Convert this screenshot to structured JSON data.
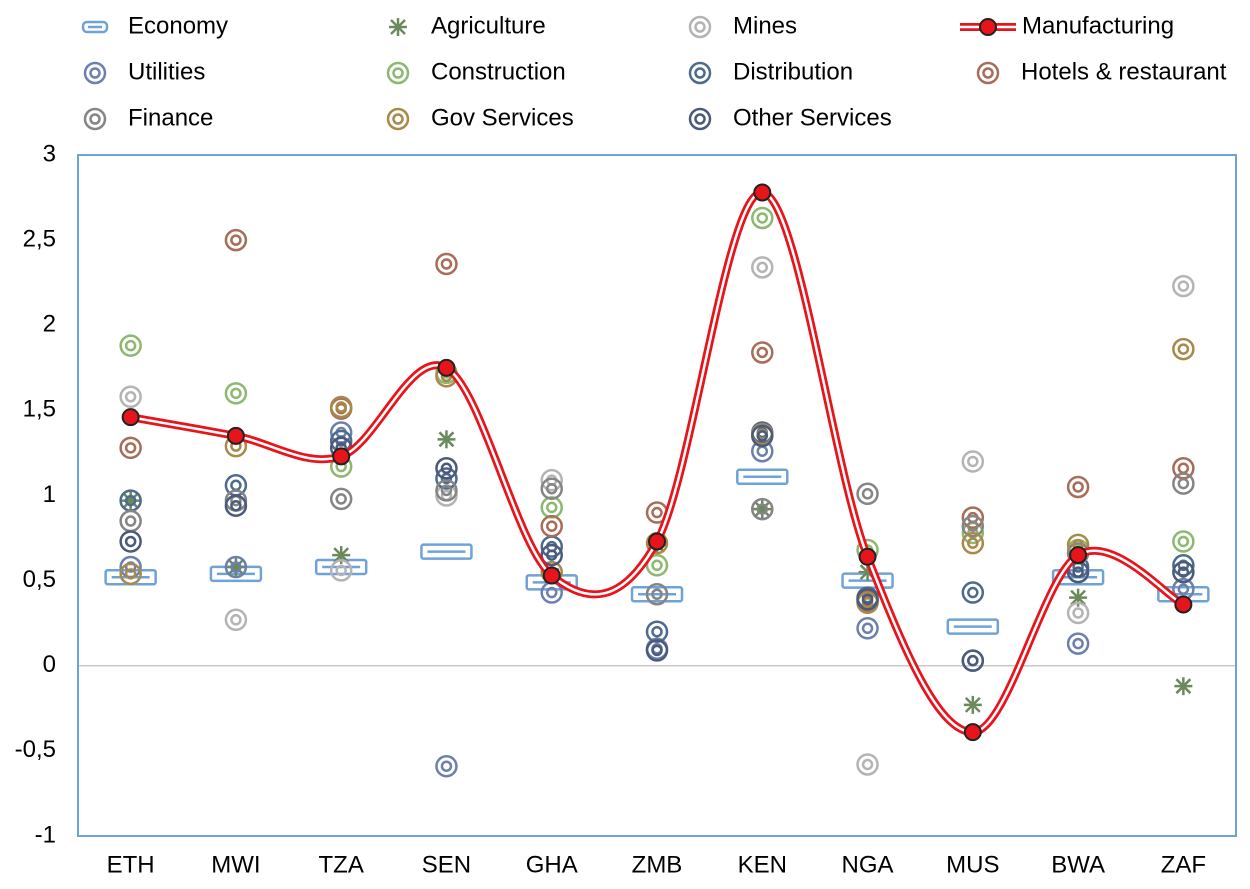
{
  "chart_data": {
    "type": "dot",
    "categories": [
      "ETH",
      "MWI",
      "TZA",
      "SEN",
      "GHA",
      "ZMB",
      "KEN",
      "NGA",
      "MUS",
      "BWA",
      "ZAF"
    ],
    "series": [
      {
        "name": "Economy",
        "color": "#6fa3d8",
        "marker": "bar",
        "values": [
          0.52,
          0.54,
          0.58,
          0.67,
          0.49,
          0.42,
          1.11,
          0.5,
          0.23,
          0.52,
          0.42
        ]
      },
      {
        "name": "Agriculture",
        "color": "#6b8a5c",
        "marker": "asterisk",
        "values": [
          0.97,
          0.58,
          0.65,
          1.33,
          0.53,
          0.71,
          0.92,
          0.55,
          -0.23,
          0.4,
          -0.12
        ]
      },
      {
        "name": "Mines",
        "color": "#b4b4b4",
        "marker": "ring",
        "values": [
          1.58,
          0.27,
          0.56,
          1.0,
          1.09,
          0.42,
          2.34,
          -0.58,
          1.2,
          0.31,
          2.23
        ]
      },
      {
        "name": "Manufacturing",
        "color": "#e8141b",
        "marker": "line",
        "values": [
          1.46,
          1.35,
          1.23,
          1.75,
          0.53,
          0.73,
          2.78,
          0.64,
          -0.39,
          0.65,
          0.36
        ]
      },
      {
        "name": "Utilities",
        "color": "#6d80ad",
        "marker": "ring",
        "values": [
          0.58,
          0.58,
          1.37,
          -0.59,
          0.43,
          0.1,
          1.26,
          0.22,
          0.03,
          0.13,
          0.45
        ]
      },
      {
        "name": "Construction",
        "color": "#8db870",
        "marker": "ring",
        "values": [
          1.88,
          1.6,
          1.17,
          1.72,
          0.93,
          0.59,
          2.63,
          0.68,
          0.78,
          0.68,
          0.73
        ]
      },
      {
        "name": "Distribution",
        "color": "#4d6b8c",
        "marker": "ring",
        "values": [
          0.97,
          1.06,
          1.32,
          1.1,
          0.7,
          0.2,
          1.37,
          0.4,
          0.43,
          0.58,
          0.59
        ]
      },
      {
        "name": "Hotels & restaurant",
        "color": "#a86d58",
        "marker": "ring",
        "values": [
          1.28,
          2.5,
          1.51,
          2.36,
          0.82,
          0.9,
          1.84,
          0.38,
          0.87,
          1.05,
          1.16
        ]
      },
      {
        "name": "Finance",
        "color": "#858585",
        "marker": "ring",
        "values": [
          0.85,
          0.97,
          0.98,
          1.03,
          1.04,
          0.42,
          0.92,
          1.01,
          0.82,
          0.66,
          1.07
        ]
      },
      {
        "name": "Gov Services",
        "color": "#a88948",
        "marker": "ring",
        "values": [
          0.54,
          1.29,
          1.52,
          1.7,
          0.55,
          0.72,
          1.36,
          0.37,
          0.72,
          0.71,
          1.86
        ]
      },
      {
        "name": "Other Services",
        "color": "#4b5a7c",
        "marker": "ring",
        "values": [
          0.73,
          0.94,
          1.28,
          1.16,
          0.65,
          0.09,
          1.35,
          0.39,
          0.03,
          0.55,
          0.55
        ]
      }
    ],
    "ylim": [
      -1,
      3
    ],
    "yticks": [
      -1,
      {
        "value": -0.5,
        "label": "-0,5"
      },
      0,
      {
        "value": 0.5,
        "label": "0,5"
      },
      1,
      {
        "value": 1.5,
        "label": "1,5"
      },
      2,
      {
        "value": 2.5,
        "label": "2,5"
      },
      3
    ],
    "zero_line": true,
    "legend": "top"
  }
}
